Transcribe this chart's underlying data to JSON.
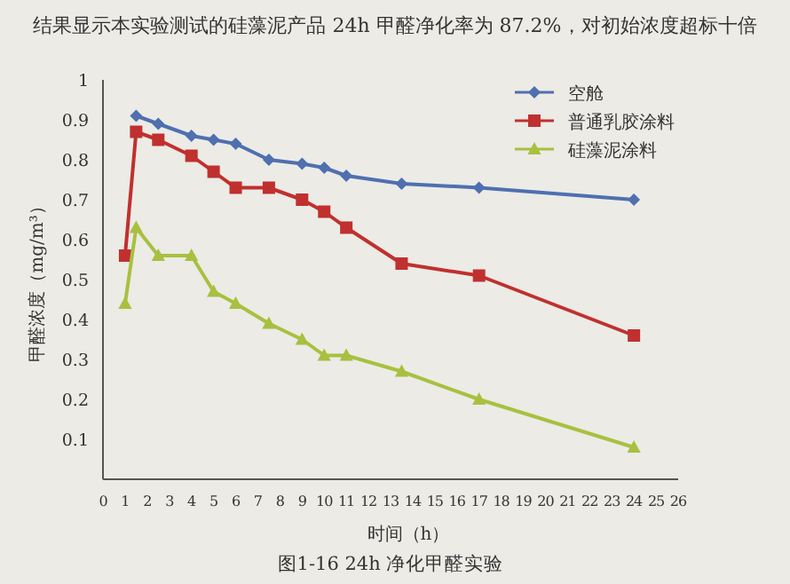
{
  "chart_data": {
    "type": "line",
    "title": "图1-16  24h 净化甲醛实验",
    "annotations": [
      "结果显示本实验测试的硅藻泥产品 24h 甲醛净化率为 87.2%，对初始浓度超标十倍"
    ],
    "xlabel": "时间（h）",
    "ylabel": "甲醛浓度（mg/m³）",
    "x": [
      1,
      1.5,
      2.5,
      4,
      5,
      6,
      7.5,
      9,
      10,
      11,
      13.5,
      17,
      24
    ],
    "series": [
      {
        "name": "空舱",
        "color": "#4f6fb0",
        "marker": "diamond",
        "values": [
          null,
          0.91,
          0.89,
          0.86,
          0.85,
          0.84,
          0.8,
          0.79,
          0.78,
          0.76,
          0.74,
          0.73,
          0.7
        ]
      },
      {
        "name": "普通乳胶涂料",
        "color": "#c0302f",
        "marker": "square",
        "values": [
          0.56,
          0.87,
          0.85,
          0.81,
          0.77,
          0.73,
          0.73,
          0.7,
          0.67,
          0.63,
          0.54,
          0.51,
          0.36
        ]
      },
      {
        "name": "硅藻泥涂料",
        "color": "#a8c040",
        "marker": "triangle",
        "values": [
          0.44,
          0.63,
          0.56,
          0.56,
          0.47,
          0.44,
          0.39,
          0.35,
          0.31,
          0.31,
          0.27,
          0.2,
          0.08
        ]
      }
    ],
    "xlim": [
      0,
      26
    ],
    "xticks": [
      0,
      1,
      2,
      3,
      4,
      5,
      6,
      7,
      8,
      9,
      10,
      11,
      12,
      13,
      14,
      15,
      16,
      17,
      18,
      19,
      20,
      21,
      22,
      23,
      24,
      25,
      26
    ],
    "ylim": [
      0,
      1
    ],
    "yticks": [
      0.1,
      0.2,
      0.3,
      0.4,
      0.5,
      0.6,
      0.7,
      0.8,
      0.9,
      1
    ],
    "legend": "top right",
    "grid": false,
    "line_style": "solid"
  }
}
